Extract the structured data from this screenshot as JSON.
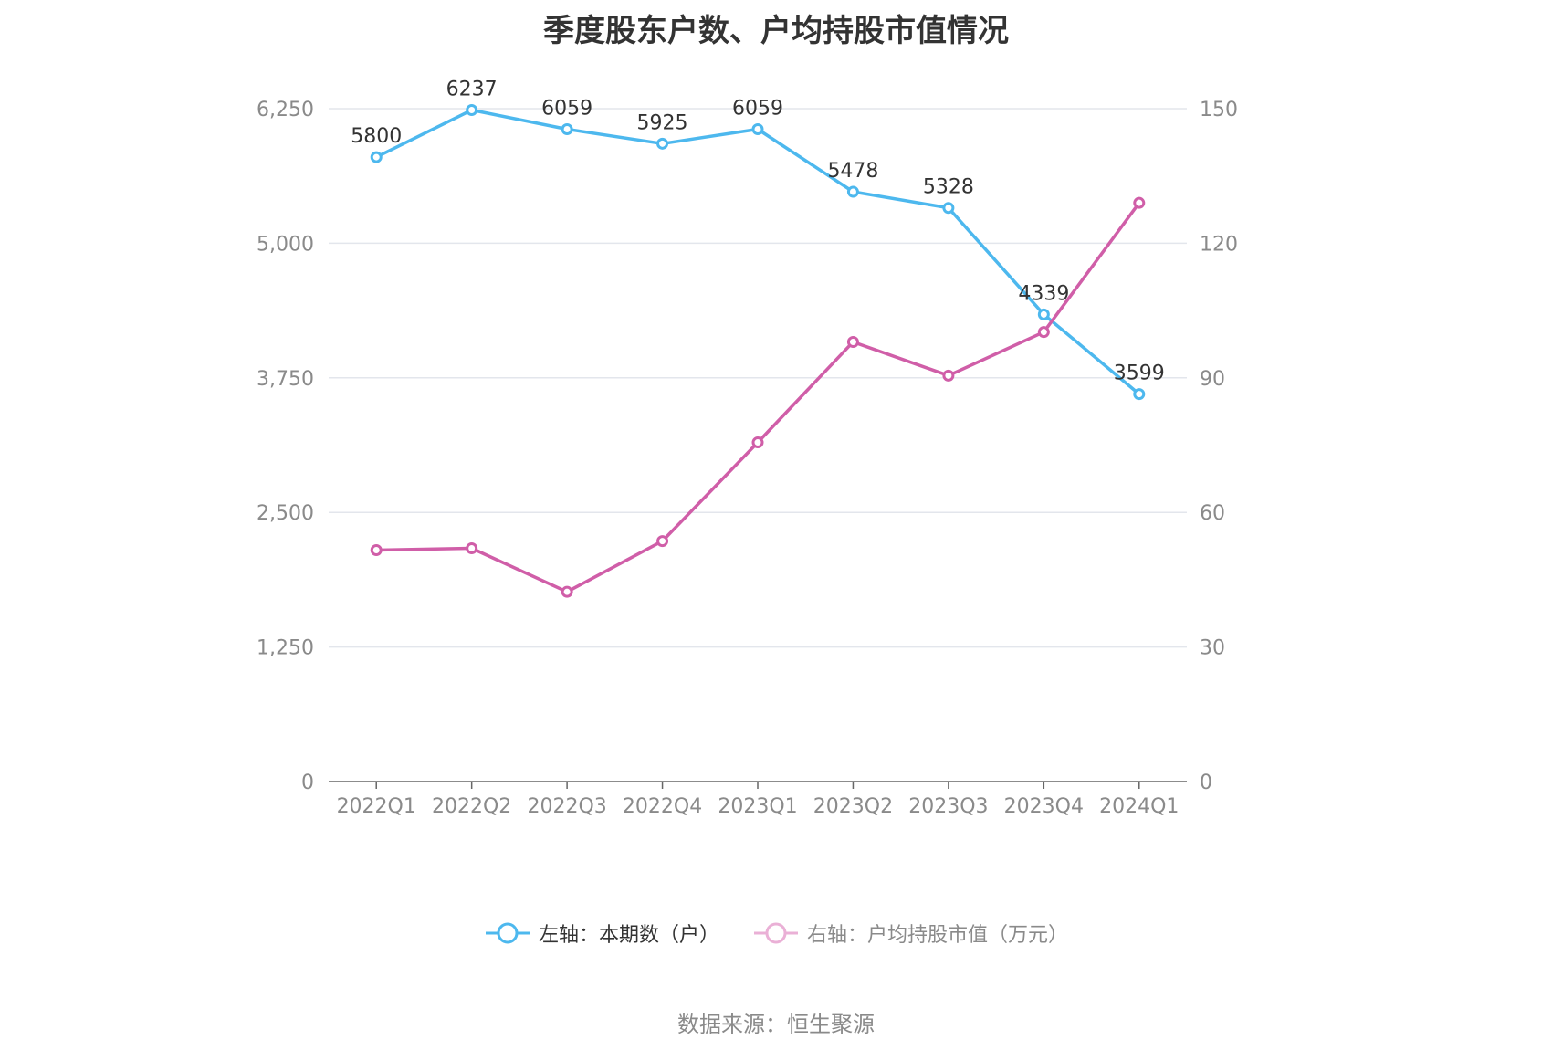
{
  "chart_data": {
    "type": "line",
    "title": "季度股东户数、户均持股市值情况",
    "categories": [
      "2022Q1",
      "2022Q2",
      "2022Q3",
      "2022Q4",
      "2023Q1",
      "2023Q2",
      "2023Q3",
      "2023Q4",
      "2024Q1"
    ],
    "left_axis": {
      "ylim": [
        0,
        6250
      ],
      "ticks": [
        0,
        1250,
        2500,
        3750,
        5000,
        6250
      ],
      "tick_labels": [
        "0",
        "1,250",
        "2,500",
        "3,750",
        "5,000",
        "6,250"
      ]
    },
    "right_axis": {
      "ylim": [
        0,
        150
      ],
      "ticks": [
        0,
        30,
        60,
        90,
        120,
        150
      ],
      "tick_labels": [
        "0",
        "30",
        "60",
        "90",
        "120",
        "150"
      ]
    },
    "grid": true,
    "legend_position": "bottom",
    "series": [
      {
        "name": "左轴：本期数（户）",
        "axis": "left",
        "color": "#4db8ee",
        "values": [
          5800,
          6237,
          6059,
          5925,
          6059,
          5478,
          5328,
          4339,
          3599
        ],
        "labels": [
          "5800",
          "6237",
          "6059",
          "5925",
          "6059",
          "5478",
          "5328",
          "4339",
          "3599"
        ]
      },
      {
        "name": "右轴：户均持股市值（万元）",
        "axis": "right",
        "color": "#d05ea8",
        "values": [
          51.6,
          52.0,
          42.3,
          53.6,
          75.6,
          98.0,
          90.5,
          100.2,
          129.0
        ]
      }
    ]
  },
  "source_text": "数据来源：恒生聚源"
}
